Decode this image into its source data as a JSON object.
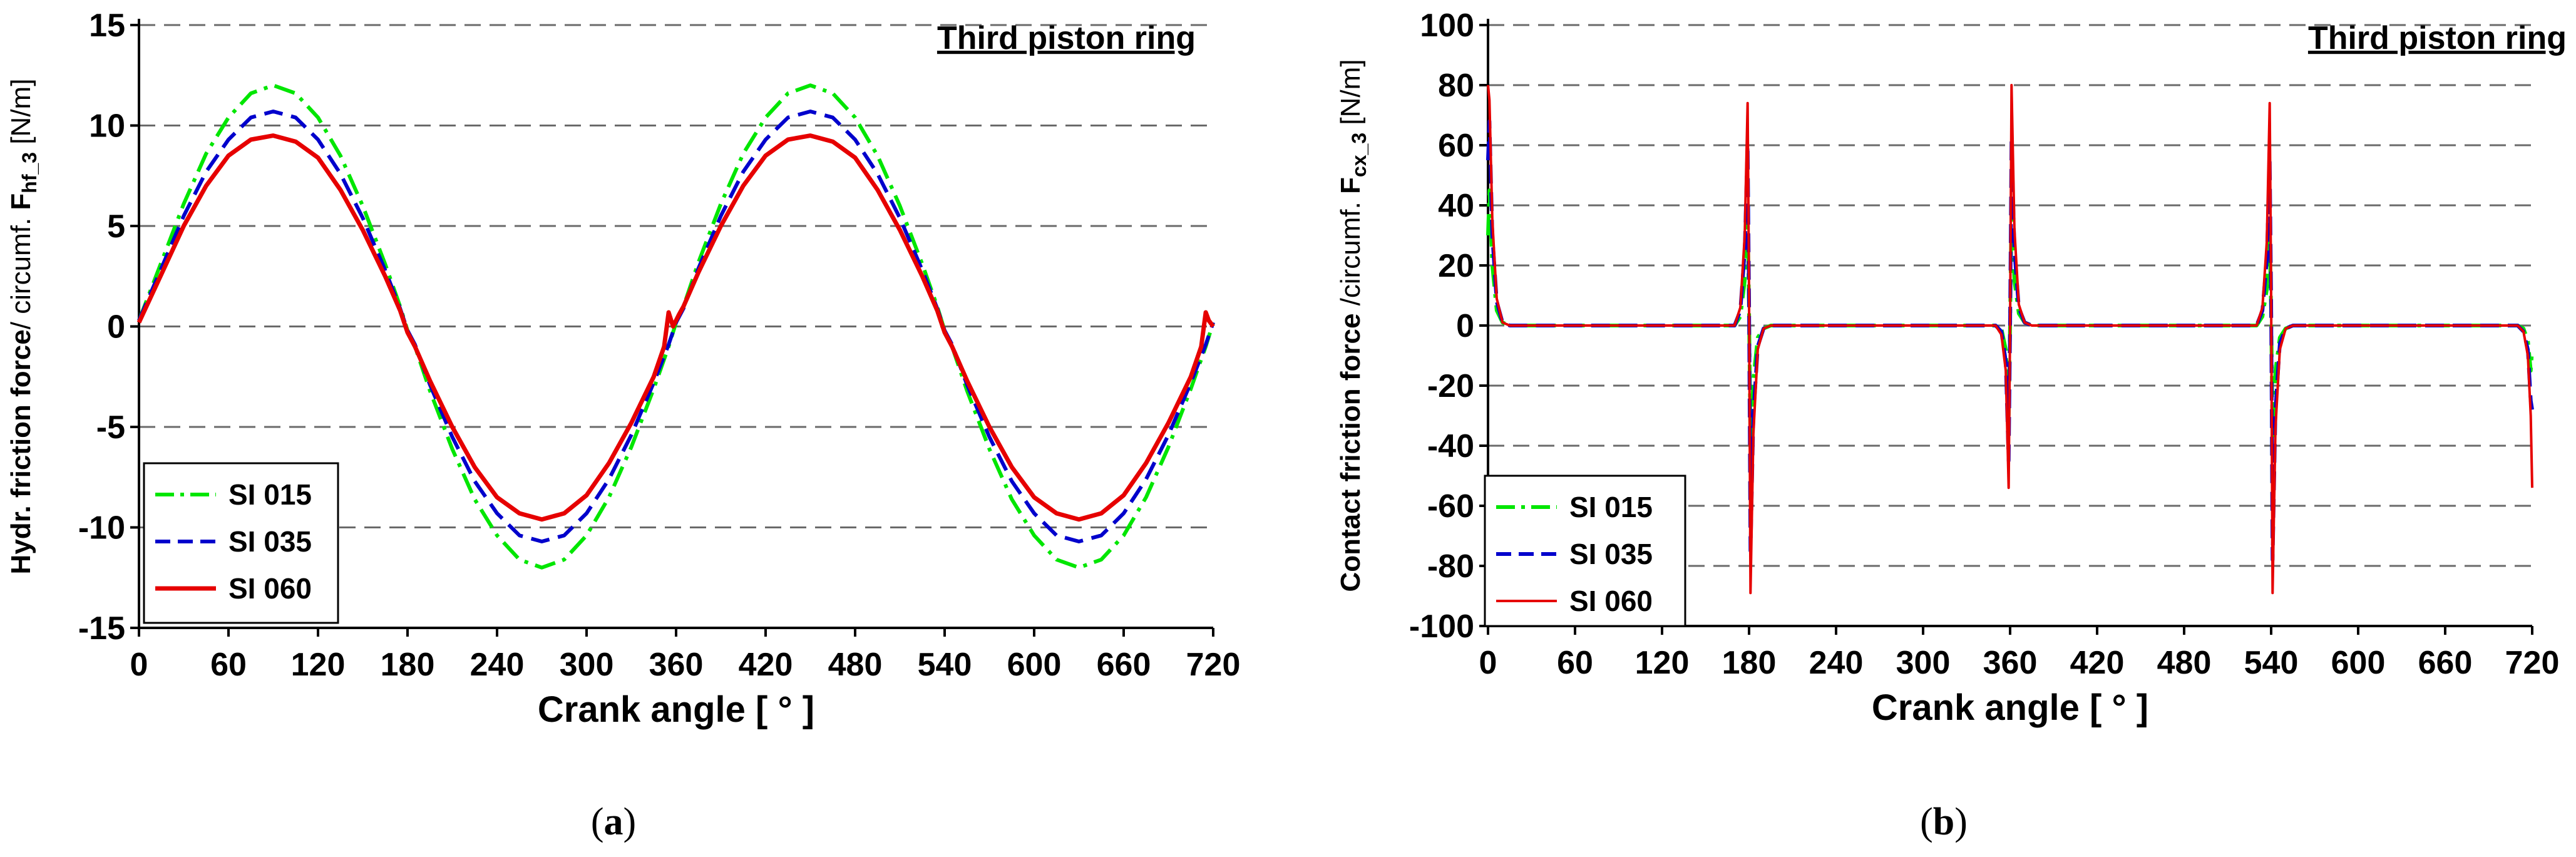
{
  "chart_data": [
    {
      "panel_label": "a",
      "type": "line",
      "title": "Third piston ring",
      "xlabel": "Crank angle [ ° ]",
      "ylabel": {
        "bold_part": "Hydr. friction force",
        "normal_part": "/ circumf. ",
        "symbol": "F",
        "subscript": "hf_3",
        "unit": " [N/m]"
      },
      "xlim": [
        0,
        720
      ],
      "ylim": [
        -15,
        15
      ],
      "xticks": [
        0,
        60,
        120,
        180,
        240,
        300,
        360,
        420,
        480,
        540,
        600,
        660,
        720
      ],
      "yticks": [
        -15,
        -10,
        -5,
        0,
        5,
        10,
        15
      ],
      "grid": "horizontal dashed",
      "legend_position": "bottom-left",
      "series": [
        {
          "name": "SI 015",
          "color": "#00e600",
          "style": "dash-dot",
          "x": [
            0,
            15,
            30,
            45,
            60,
            75,
            90,
            105,
            120,
            135,
            150,
            165,
            175,
            180,
            185,
            195,
            210,
            225,
            240,
            255,
            270,
            285,
            300,
            315,
            330,
            345,
            355,
            360,
            365,
            375,
            390,
            405,
            420,
            435,
            450,
            465,
            480,
            495,
            510,
            525,
            535,
            540,
            545,
            555,
            570,
            585,
            600,
            615,
            630,
            645,
            660,
            675,
            690,
            705,
            715,
            720
          ],
          "y": [
            0.3,
            3.2,
            6.1,
            8.6,
            10.4,
            11.6,
            12.0,
            11.6,
            10.4,
            8.5,
            6.0,
            3.1,
            1.0,
            -0.2,
            -1.0,
            -3.2,
            -6.1,
            -8.6,
            -10.4,
            -11.6,
            -12.0,
            -11.6,
            -10.4,
            -8.5,
            -6.0,
            -3.1,
            -1.0,
            0.2,
            1.0,
            3.2,
            6.1,
            8.6,
            10.4,
            11.6,
            12.0,
            11.6,
            10.4,
            8.5,
            6.0,
            3.1,
            1.0,
            -0.2,
            -1.0,
            -3.2,
            -6.1,
            -8.6,
            -10.4,
            -11.6,
            -12.0,
            -11.6,
            -10.4,
            -8.5,
            -6.0,
            -3.1,
            -1.0,
            0.2
          ]
        },
        {
          "name": "SI 035",
          "color": "#0000cc",
          "style": "dashed",
          "x": [
            0,
            15,
            30,
            45,
            60,
            75,
            90,
            105,
            120,
            135,
            150,
            165,
            175,
            180,
            185,
            195,
            210,
            225,
            240,
            255,
            270,
            285,
            300,
            315,
            330,
            345,
            355,
            360,
            365,
            375,
            390,
            405,
            420,
            435,
            450,
            465,
            480,
            495,
            510,
            525,
            535,
            540,
            545,
            555,
            570,
            585,
            600,
            615,
            630,
            645,
            660,
            675,
            690,
            705,
            715,
            720
          ],
          "y": [
            0.3,
            2.9,
            5.5,
            7.7,
            9.3,
            10.4,
            10.7,
            10.4,
            9.3,
            7.6,
            5.4,
            2.8,
            0.9,
            -0.2,
            -0.9,
            -2.9,
            -5.5,
            -7.7,
            -9.3,
            -10.4,
            -10.7,
            -10.4,
            -9.3,
            -7.6,
            -5.4,
            -2.8,
            -0.9,
            0.2,
            0.9,
            2.9,
            5.5,
            7.7,
            9.3,
            10.4,
            10.7,
            10.4,
            9.3,
            7.6,
            5.4,
            2.8,
            0.9,
            -0.2,
            -0.9,
            -2.9,
            -5.5,
            -7.7,
            -9.3,
            -10.4,
            -10.7,
            -10.4,
            -9.3,
            -7.6,
            -5.4,
            -2.8,
            -0.9,
            0.2
          ]
        },
        {
          "name": "SI 060",
          "color": "#e60000",
          "style": "solid",
          "x": [
            0,
            15,
            30,
            45,
            60,
            75,
            90,
            105,
            120,
            135,
            150,
            165,
            175,
            180,
            185,
            195,
            210,
            225,
            240,
            255,
            270,
            285,
            300,
            315,
            330,
            345,
            352,
            355,
            358,
            362,
            365,
            375,
            390,
            405,
            420,
            435,
            450,
            465,
            480,
            495,
            510,
            525,
            535,
            540,
            545,
            555,
            570,
            585,
            600,
            615,
            630,
            645,
            660,
            675,
            690,
            705,
            712,
            715,
            717,
            720
          ],
          "y": [
            0.2,
            2.6,
            5.0,
            7.0,
            8.5,
            9.3,
            9.5,
            9.2,
            8.4,
            6.8,
            4.8,
            2.5,
            0.8,
            -0.3,
            -1.0,
            -2.7,
            -5.0,
            -7.0,
            -8.5,
            -9.3,
            -9.6,
            -9.3,
            -8.4,
            -6.8,
            -4.8,
            -2.5,
            -1.0,
            0.7,
            0.0,
            0.6,
            1.0,
            2.7,
            5.0,
            7.0,
            8.5,
            9.3,
            9.5,
            9.2,
            8.4,
            6.8,
            4.8,
            2.5,
            0.8,
            -0.3,
            -1.0,
            -2.7,
            -5.0,
            -7.0,
            -8.5,
            -9.3,
            -9.6,
            -9.3,
            -8.4,
            -6.8,
            -4.8,
            -2.5,
            -1.0,
            0.7,
            0.3,
            0.0
          ]
        }
      ]
    },
    {
      "panel_label": "b",
      "type": "line",
      "title": "Third piston ring",
      "xlabel": "Crank angle [ ° ]",
      "ylabel": {
        "bold_part": "Contact friction force",
        "normal_part": " /circumf. ",
        "symbol": "F",
        "subscript": "cx_3",
        "unit": " [N/m]"
      },
      "xlim": [
        0,
        720
      ],
      "ylim": [
        -100,
        100
      ],
      "xticks": [
        0,
        60,
        120,
        180,
        240,
        300,
        360,
        420,
        480,
        540,
        600,
        660,
        720
      ],
      "yticks": [
        -100,
        -80,
        -60,
        -40,
        -20,
        0,
        20,
        40,
        60,
        80,
        100
      ],
      "grid": "horizontal dashed",
      "legend_position": "bottom-left",
      "series": [
        {
          "name": "SI 015",
          "color": "#00e600",
          "style": "dash-dot",
          "x": [
            0,
            1,
            3,
            6,
            10,
            15,
            170,
            174,
            177,
            179,
            180,
            181,
            183,
            186,
            190,
            195,
            350,
            354,
            357,
            359,
            360,
            361,
            363,
            366,
            370,
            375,
            530,
            534,
            537,
            539,
            540,
            541,
            543,
            546,
            550,
            555,
            710,
            714,
            717,
            719,
            720
          ],
          "y": [
            30,
            45,
            20,
            5,
            1,
            0,
            0,
            3,
            15,
            38,
            5,
            -40,
            -18,
            -4,
            -1,
            0,
            0,
            -1,
            -8,
            -30,
            0,
            40,
            15,
            4,
            1,
            0,
            0,
            3,
            12,
            30,
            5,
            -38,
            -15,
            -4,
            -1,
            0,
            0,
            -1,
            -5,
            -15,
            -8
          ]
        },
        {
          "name": "SI 035",
          "color": "#0000cc",
          "style": "dashed",
          "x": [
            0,
            1,
            3,
            6,
            10,
            15,
            170,
            174,
            177,
            179,
            180,
            181,
            183,
            186,
            190,
            195,
            350,
            354,
            357,
            359,
            360,
            361,
            363,
            366,
            370,
            375,
            530,
            534,
            537,
            539,
            540,
            541,
            543,
            546,
            550,
            555,
            710,
            714,
            717,
            719,
            720
          ],
          "y": [
            55,
            68,
            30,
            8,
            1,
            0,
            0,
            5,
            25,
            60,
            8,
            -75,
            -30,
            -7,
            -1,
            0,
            0,
            -2,
            -12,
            -45,
            0,
            62,
            25,
            6,
            1,
            0,
            0,
            5,
            22,
            55,
            8,
            -78,
            -28,
            -6,
            -1,
            0,
            0,
            -2,
            -8,
            -25,
            -28
          ]
        },
        {
          "name": "SI 060",
          "color": "#e60000",
          "style": "solid",
          "x": [
            0,
            1,
            3,
            6,
            10,
            15,
            170,
            174,
            177,
            179,
            180,
            181,
            183,
            186,
            190,
            195,
            350,
            354,
            357,
            359,
            360,
            361,
            363,
            366,
            370,
            375,
            530,
            534,
            537,
            539,
            540,
            541,
            543,
            546,
            550,
            555,
            710,
            714,
            717,
            719,
            720
          ],
          "y": [
            80,
            75,
            35,
            9,
            1,
            0,
            0,
            6,
            30,
            74,
            10,
            -89,
            -36,
            -8,
            -1,
            0,
            0,
            -3,
            -15,
            -54,
            0,
            80,
            32,
            7,
            1,
            0,
            0,
            6,
            28,
            74,
            10,
            -89,
            -34,
            -8,
            -1,
            0,
            0,
            -2,
            -10,
            -30,
            -54
          ]
        }
      ]
    }
  ]
}
